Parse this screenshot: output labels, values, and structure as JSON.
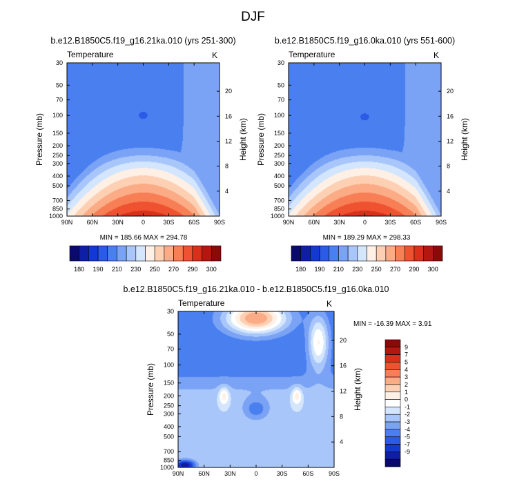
{
  "page_title": "DJF",
  "colors": {
    "abs_palette": [
      "#0a0a6e",
      "#0f1fa5",
      "#1438d2",
      "#2a5ae6",
      "#4a7ff0",
      "#7aa3f5",
      "#a8c6fa",
      "#d4e6fd",
      "#fff0e6",
      "#fdd0b4",
      "#fbab85",
      "#f77e55",
      "#ef5230",
      "#d9301b",
      "#b3170f",
      "#8a0a0a"
    ],
    "diff_palette": [
      "#0a0a6e",
      "#0f1fa5",
      "#1438d2",
      "#2a5ae6",
      "#4a7ff0",
      "#7aa3f5",
      "#a8c6fa",
      "#d4e6fd",
      "#ffffff",
      "#fff0e6",
      "#fdd0b4",
      "#fbab85",
      "#f77e55",
      "#ef5230",
      "#d9301b",
      "#b3170f",
      "#8a0a0a"
    ]
  },
  "chart_data": [
    {
      "id": "panel-left",
      "type": "heatmap",
      "title": "b.e12.B1850C5.f19_g16.21ka.010 (yrs 251-300)",
      "variable": "Temperature",
      "units": "K",
      "xlabel": "",
      "ylabel": "Pressure (mb)",
      "y2label": "Height (km)",
      "x_ticks": [
        "90N",
        "60N",
        "30N",
        "0",
        "30S",
        "60S",
        "90S"
      ],
      "x_range": [
        90,
        -90
      ],
      "p_ticks": [
        30,
        50,
        70,
        100,
        150,
        200,
        250,
        300,
        400,
        500,
        700,
        850,
        1000
      ],
      "p_range": [
        1000,
        30
      ],
      "h_ticks": [
        4,
        8,
        12,
        16,
        20
      ],
      "levels": [
        180,
        185,
        190,
        200,
        210,
        220,
        230,
        240,
        250,
        260,
        270,
        280,
        290,
        295,
        300
      ],
      "colorbar_labels": [
        "180",
        "190",
        "210",
        "230",
        "250",
        "270",
        "290",
        "300"
      ],
      "min_label": "MIN = 185.66",
      "max_label": "MAX = 294.78",
      "min": 185.66,
      "max": 294.78,
      "tropo_offset": 0
    },
    {
      "id": "panel-right",
      "type": "heatmap",
      "title": "b.e12.B1850C5.f19_g16.0ka.010 (yrs 551-600)",
      "variable": "Temperature",
      "units": "K",
      "xlabel": "",
      "ylabel": "Pressure (mb)",
      "y2label": "Height (km)",
      "x_ticks": [
        "90N",
        "60N",
        "30N",
        "0",
        "30S",
        "60S",
        "90S"
      ],
      "x_range": [
        90,
        -90
      ],
      "p_ticks": [
        30,
        50,
        70,
        100,
        150,
        200,
        250,
        300,
        400,
        500,
        700,
        850,
        1000
      ],
      "p_range": [
        1000,
        30
      ],
      "h_ticks": [
        4,
        8,
        12,
        16,
        20
      ],
      "levels": [
        180,
        185,
        190,
        200,
        210,
        220,
        230,
        240,
        250,
        260,
        270,
        280,
        290,
        295,
        300
      ],
      "colorbar_labels": [
        "180",
        "190",
        "210",
        "230",
        "250",
        "270",
        "290",
        "300"
      ],
      "min_label": "MIN = 189.29",
      "max_label": "MAX = 298.33",
      "min": 189.29,
      "max": 298.33,
      "tropo_offset": 3.5
    },
    {
      "id": "panel-diff",
      "type": "heatmap",
      "title": "b.e12.B1850C5.f19_g16.21ka.010 - b.e12.B1850C5.f19_g16.0ka.010",
      "variable": "Temperature",
      "units": "K",
      "xlabel": "",
      "ylabel": "Pressure (mb)",
      "y2label": "Height (km)",
      "x_ticks": [
        "90N",
        "60N",
        "30N",
        "0",
        "30S",
        "60S",
        "90S"
      ],
      "x_range": [
        90,
        -90
      ],
      "p_ticks": [
        30,
        50,
        70,
        100,
        150,
        200,
        250,
        300,
        400,
        500,
        700,
        850,
        1000
      ],
      "p_range": [
        1000,
        30
      ],
      "h_ticks": [
        4,
        8,
        12,
        16,
        20
      ],
      "levels": [
        -9,
        -8,
        -7,
        -6,
        -5,
        -4,
        -3,
        -2,
        -1,
        0,
        1,
        2,
        3,
        4,
        5,
        7,
        9
      ],
      "colorbar_labels": [
        "9",
        "7",
        "5",
        "4",
        "3",
        "2",
        "1",
        "0",
        "-1",
        "-2",
        "-3",
        "-4",
        "-5",
        "-7",
        "-9"
      ],
      "min_label": "MIN = -16.39",
      "max_label": "MAX =   3.91",
      "min": -16.39,
      "max": 3.91
    }
  ]
}
